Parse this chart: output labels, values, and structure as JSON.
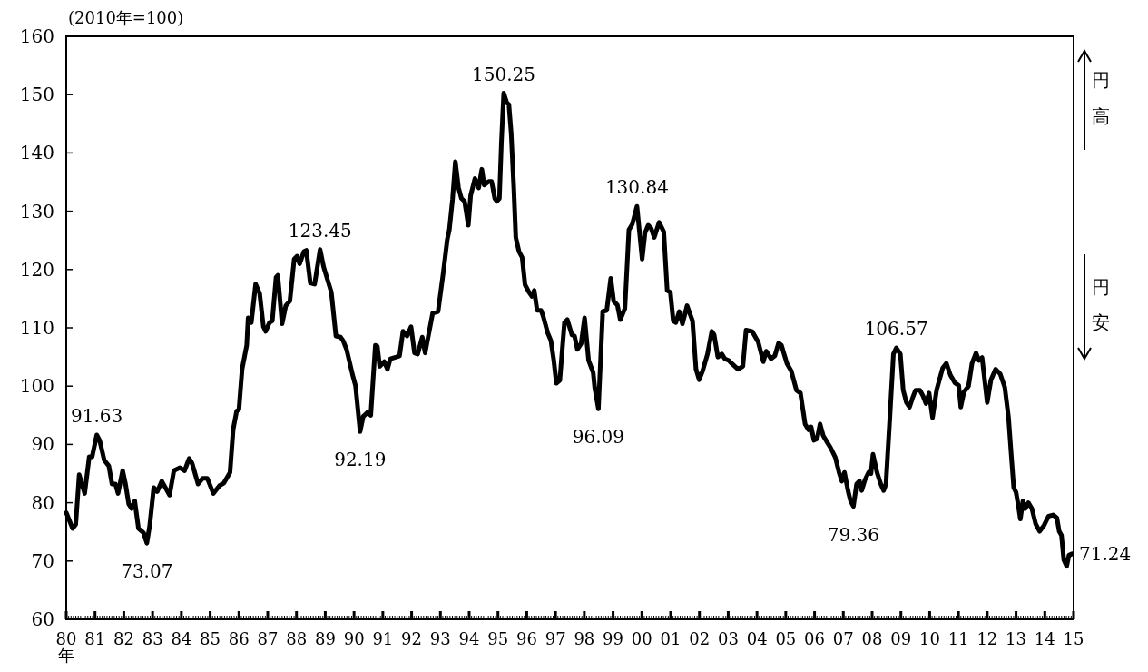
{
  "chart_data": {
    "type": "line",
    "ylabel": "(2010年=100)",
    "xlabel": "年",
    "color": "#000000",
    "x": [
      1980.0,
      1980.22,
      1980.33,
      1980.45,
      1980.64,
      1980.8,
      1980.9,
      1981.06,
      1981.16,
      1981.32,
      1981.48,
      1981.59,
      1981.71,
      1981.8,
      1981.96,
      1982.06,
      1982.17,
      1982.27,
      1982.38,
      1982.51,
      1982.69,
      1982.8,
      1982.9,
      1983.04,
      1983.16,
      1983.32,
      1983.59,
      1983.74,
      1983.95,
      1984.11,
      1984.27,
      1984.37,
      1984.58,
      1984.74,
      1984.9,
      1985.11,
      1985.32,
      1985.48,
      1985.69,
      1985.8,
      1985.92,
      1986.0,
      1986.11,
      1986.27,
      1986.32,
      1986.43,
      1986.58,
      1986.72,
      1986.85,
      1986.93,
      1987.06,
      1987.16,
      1987.29,
      1987.35,
      1987.5,
      1987.63,
      1987.77,
      1987.92,
      1988.02,
      1988.11,
      1988.26,
      1988.34,
      1988.48,
      1988.63,
      1988.82,
      1988.94,
      1989.05,
      1989.21,
      1989.37,
      1989.53,
      1989.62,
      1989.74,
      1989.95,
      1990.05,
      1990.21,
      1990.32,
      1990.47,
      1990.58,
      1990.74,
      1990.81,
      1990.89,
      1991.05,
      1991.16,
      1991.26,
      1991.47,
      1991.58,
      1991.7,
      1991.84,
      1991.98,
      1992.1,
      1992.21,
      1992.37,
      1992.47,
      1992.73,
      1992.92,
      1993.1,
      1993.24,
      1993.31,
      1993.42,
      1993.52,
      1993.63,
      1993.73,
      1993.84,
      1993.97,
      1994.05,
      1994.2,
      1994.33,
      1994.44,
      1994.52,
      1994.68,
      1994.78,
      1994.89,
      1994.96,
      1995.05,
      1995.12,
      1995.2,
      1995.31,
      1995.38,
      1995.46,
      1995.55,
      1995.62,
      1995.73,
      1995.84,
      1995.94,
      1996.08,
      1996.18,
      1996.26,
      1996.36,
      1996.5,
      1996.57,
      1996.73,
      1996.84,
      1996.94,
      1997.03,
      1997.15,
      1997.31,
      1997.41,
      1997.57,
      1997.66,
      1997.76,
      1997.89,
      1998.01,
      1998.15,
      1998.31,
      1998.36,
      1998.49,
      1998.64,
      1998.78,
      1998.92,
      1999.02,
      1999.15,
      1999.25,
      1999.41,
      1999.55,
      1999.67,
      1999.83,
      2000.01,
      2000.11,
      2000.22,
      2000.32,
      2000.43,
      2000.6,
      2000.76,
      2000.88,
      2000.99,
      2001.09,
      2001.18,
      2001.3,
      2001.41,
      2001.57,
      2001.76,
      2001.88,
      2001.99,
      2002.11,
      2002.28,
      2002.43,
      2002.51,
      2002.64,
      2002.78,
      2002.88,
      2003.02,
      2003.12,
      2003.34,
      2003.51,
      2003.62,
      2003.83,
      2004.04,
      2004.22,
      2004.32,
      2004.49,
      2004.62,
      2004.75,
      2004.85,
      2005.04,
      2005.19,
      2005.37,
      2005.51,
      2005.67,
      2005.79,
      2005.88,
      2005.98,
      2006.09,
      2006.19,
      2006.3,
      2006.46,
      2006.56,
      2006.72,
      2006.85,
      2006.95,
      2007.04,
      2007.16,
      2007.25,
      2007.35,
      2007.46,
      2007.56,
      2007.64,
      2007.75,
      2007.88,
      2007.96,
      2008.03,
      2008.17,
      2008.3,
      2008.4,
      2008.48,
      2008.61,
      2008.74,
      2008.84,
      2008.98,
      2009.08,
      2009.19,
      2009.3,
      2009.4,
      2009.51,
      2009.66,
      2009.77,
      2009.87,
      2009.98,
      2010.1,
      2010.24,
      2010.45,
      2010.58,
      2010.72,
      2010.87,
      2011.01,
      2011.08,
      2011.19,
      2011.35,
      2011.47,
      2011.61,
      2011.71,
      2011.82,
      2012.0,
      2012.13,
      2012.29,
      2012.45,
      2012.61,
      2012.74,
      2012.84,
      2012.92,
      2013.0,
      2013.08,
      2013.15,
      2013.24,
      2013.32,
      2013.43,
      2013.55,
      2013.68,
      2013.82,
      2013.97,
      2014.13,
      2014.29,
      2014.42,
      2014.5,
      2014.58,
      2014.66,
      2014.76,
      2014.84,
      2014.95
    ],
    "values": [
      78.3,
      75.6,
      76.3,
      84.8,
      81.6,
      87.9,
      87.9,
      91.63,
      90.7,
      87.3,
      86.3,
      83.2,
      83.2,
      81.6,
      85.5,
      83.2,
      79.8,
      79.0,
      80.3,
      75.6,
      74.8,
      73.07,
      76.1,
      82.6,
      81.9,
      83.7,
      81.3,
      85.5,
      86.0,
      85.5,
      87.6,
      86.8,
      83.2,
      84.2,
      84.2,
      81.6,
      82.9,
      83.4,
      85.2,
      92.6,
      95.7,
      96.0,
      102.9,
      107.0,
      111.7,
      110.9,
      117.5,
      115.9,
      110.2,
      109.4,
      110.9,
      111.2,
      118.7,
      119.0,
      110.7,
      113.8,
      114.6,
      121.8,
      122.3,
      121.0,
      123.1,
      123.3,
      117.7,
      117.5,
      123.45,
      120.5,
      118.7,
      116.1,
      108.6,
      108.4,
      107.8,
      106.3,
      101.9,
      100.1,
      92.19,
      94.8,
      95.5,
      95.0,
      107.0,
      106.8,
      103.4,
      104.2,
      102.9,
      104.7,
      105.0,
      105.2,
      109.4,
      108.6,
      110.2,
      105.7,
      105.5,
      108.4,
      105.7,
      112.5,
      112.8,
      119.5,
      125.2,
      126.8,
      132.0,
      138.5,
      134.0,
      132.2,
      131.7,
      127.6,
      132.7,
      135.6,
      134.0,
      137.2,
      134.5,
      135.1,
      135.1,
      132.2,
      131.7,
      132.2,
      141.8,
      150.25,
      148.6,
      148.3,
      143.4,
      134.0,
      125.5,
      123.1,
      122.1,
      117.4,
      116.1,
      115.4,
      116.4,
      113.0,
      113.0,
      112.0,
      109.1,
      107.8,
      104.4,
      100.5,
      101.0,
      110.9,
      111.4,
      108.8,
      108.6,
      106.3,
      107.3,
      111.7,
      104.4,
      102.3,
      99.8,
      96.09,
      112.8,
      113.0,
      118.5,
      114.6,
      113.9,
      111.4,
      113.3,
      126.8,
      127.8,
      130.84,
      121.8,
      126.3,
      127.6,
      127.1,
      125.5,
      128.1,
      126.5,
      116.4,
      116.1,
      111.2,
      110.9,
      112.8,
      110.7,
      113.8,
      111.2,
      102.9,
      101.1,
      102.6,
      105.5,
      109.4,
      108.8,
      105.0,
      105.5,
      104.7,
      104.4,
      103.9,
      102.9,
      103.4,
      109.6,
      109.4,
      107.6,
      104.2,
      106.0,
      104.7,
      105.2,
      107.4,
      107.0,
      103.9,
      102.6,
      99.3,
      98.8,
      93.5,
      92.5,
      93.0,
      90.7,
      91.0,
      93.5,
      91.5,
      90.2,
      89.4,
      87.8,
      85.2,
      83.7,
      85.2,
      82.1,
      80.3,
      79.36,
      83.2,
      83.7,
      82.1,
      83.9,
      85.2,
      85.0,
      88.3,
      85.2,
      83.2,
      82.1,
      83.2,
      94.1,
      105.5,
      106.57,
      105.5,
      99.3,
      97.2,
      96.4,
      97.9,
      99.3,
      99.3,
      98.3,
      97.0,
      98.8,
      94.6,
      99.3,
      103.1,
      103.9,
      101.9,
      100.6,
      100.1,
      96.4,
      99.0,
      100.0,
      103.9,
      105.7,
      104.4,
      104.9,
      97.2,
      101.1,
      102.9,
      102.1,
      99.8,
      94.6,
      87.8,
      82.6,
      81.8,
      79.5,
      77.2,
      80.3,
      79.0,
      80.0,
      79.0,
      76.4,
      75.1,
      76.1,
      77.7,
      77.9,
      77.4,
      75.1,
      74.4,
      70.2,
      69.1,
      71.0,
      71.24
    ],
    "xlim": [
      1980,
      2015
    ],
    "xticks": [
      {
        "value": 1980,
        "label": "80"
      },
      {
        "value": 1981,
        "label": "81"
      },
      {
        "value": 1982,
        "label": "82"
      },
      {
        "value": 1983,
        "label": "83"
      },
      {
        "value": 1984,
        "label": "84"
      },
      {
        "value": 1985,
        "label": "85"
      },
      {
        "value": 1986,
        "label": "86"
      },
      {
        "value": 1987,
        "label": "87"
      },
      {
        "value": 1988,
        "label": "88"
      },
      {
        "value": 1989,
        "label": "89"
      },
      {
        "value": 1990,
        "label": "90"
      },
      {
        "value": 1991,
        "label": "91"
      },
      {
        "value": 1992,
        "label": "92"
      },
      {
        "value": 1993,
        "label": "93"
      },
      {
        "value": 1994,
        "label": "94"
      },
      {
        "value": 1995,
        "label": "95"
      },
      {
        "value": 1996,
        "label": "96"
      },
      {
        "value": 1997,
        "label": "97"
      },
      {
        "value": 1998,
        "label": "98"
      },
      {
        "value": 1999,
        "label": "99"
      },
      {
        "value": 2000,
        "label": "00"
      },
      {
        "value": 2001,
        "label": "01"
      },
      {
        "value": 2002,
        "label": "02"
      },
      {
        "value": 2003,
        "label": "03"
      },
      {
        "value": 2004,
        "label": "04"
      },
      {
        "value": 2005,
        "label": "05"
      },
      {
        "value": 2006,
        "label": "06"
      },
      {
        "value": 2007,
        "label": "07"
      },
      {
        "value": 2008,
        "label": "08"
      },
      {
        "value": 2009,
        "label": "09"
      },
      {
        "value": 2010,
        "label": "10"
      },
      {
        "value": 2011,
        "label": "11"
      },
      {
        "value": 2012,
        "label": "12"
      },
      {
        "value": 2013,
        "label": "13"
      },
      {
        "value": 2014,
        "label": "14"
      },
      {
        "value": 2015,
        "label": "15"
      }
    ],
    "ylim": [
      60,
      160
    ],
    "yticks": [
      60,
      70,
      80,
      90,
      100,
      110,
      120,
      130,
      140,
      150,
      160
    ],
    "annotations": [
      {
        "text": "91.63",
        "x": 1981.06,
        "y": 91.63
      },
      {
        "text": "73.07",
        "x": 1982.8,
        "y": 73.07
      },
      {
        "text": "123.45",
        "x": 1988.82,
        "y": 123.45
      },
      {
        "text": "92.19",
        "x": 1990.21,
        "y": 92.19
      },
      {
        "text": "150.25",
        "x": 1995.2,
        "y": 150.25
      },
      {
        "text": "130.84",
        "x": 1999.83,
        "y": 130.84
      },
      {
        "text": "96.09",
        "x": 1998.49,
        "y": 96.09
      },
      {
        "text": "79.36",
        "x": 2007.35,
        "y": 79.36
      },
      {
        "text": "106.57",
        "x": 2008.84,
        "y": 106.57
      },
      {
        "text": "71.24",
        "x": 2014.95,
        "y": 71.24
      },
      "円高",
      "円安"
    ]
  }
}
